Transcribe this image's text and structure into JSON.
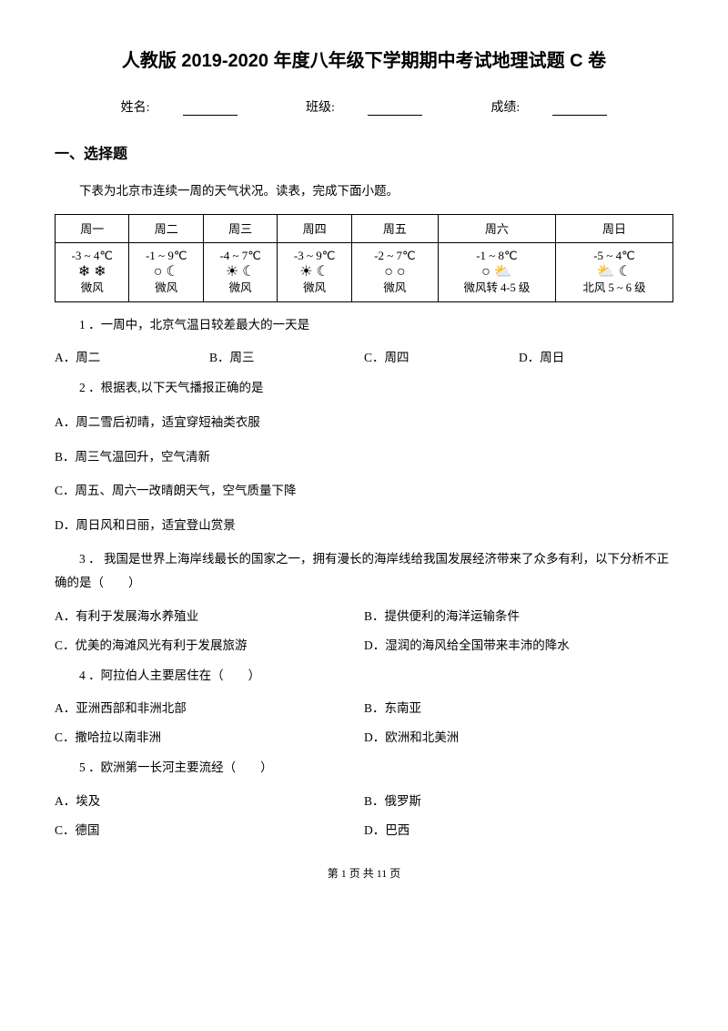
{
  "title": "人教版 2019-2020 年度八年级下学期期中考试地理试题 C 卷",
  "info": {
    "name_label": "姓名:",
    "class_label": "班级:",
    "score_label": "成绩:"
  },
  "section1": "一、选择题",
  "intro": "下表为北京市连续一周的天气状况。读表，完成下面小题。",
  "weather_table": {
    "headers": [
      "周一",
      "周二",
      "周三",
      "周四",
      "周五",
      "周六",
      "周日"
    ],
    "cells": [
      {
        "temp": "-3 ~ 4℃",
        "icons": "❄ ❄",
        "wind": "微风"
      },
      {
        "temp": "-1 ~ 9℃",
        "icons": "○ ☾",
        "wind": "微风"
      },
      {
        "temp": "-4 ~ 7℃",
        "icons": "☀ ☾",
        "wind": "微风"
      },
      {
        "temp": "-3 ~ 9℃",
        "icons": "☀ ☾",
        "wind": "微风"
      },
      {
        "temp": "-2 ~ 7℃",
        "icons": "○ ○",
        "wind": "微风"
      },
      {
        "temp": "-1 ~ 8℃",
        "icons": "○ ⛅",
        "wind": "微风转 4-5 级"
      },
      {
        "temp": "-5 ~ 4℃",
        "icons": "⛅ ☾",
        "wind": "北风 5 ~ 6 级"
      }
    ],
    "col_widths": [
      "12%",
      "12%",
      "12%",
      "12%",
      "14%",
      "19%",
      "19%"
    ]
  },
  "q1": {
    "stem": "1 ．一周中，北京气温日较差最大的一天是",
    "opts": [
      "A．周二",
      "B．周三",
      "C．周四",
      "D．周日"
    ]
  },
  "q2": {
    "stem": "2 ．根据表,以下天气播报正确的是",
    "opts": [
      "A．周二雪后初晴，适宜穿短袖类衣服",
      "B．周三气温回升，空气清新",
      "C．周五、周六一改晴朗天气，空气质量下降",
      "D．周日风和日丽，适宜登山赏景"
    ]
  },
  "q3": {
    "stem": "3 ． 我国是世界上海岸线最长的国家之一，拥有漫长的海岸线给我国发展经济带来了众多有利，以下分析不正确的是（　　）",
    "opts": [
      "A．有利于发展海水养殖业",
      "B．提供便利的海洋运输条件",
      "C．优美的海滩风光有利于发展旅游",
      "D．湿润的海风给全国带来丰沛的降水"
    ]
  },
  "q4": {
    "stem": "4 ．阿拉伯人主要居住在（　　）",
    "opts": [
      "A．亚洲西部和非洲北部",
      "B．东南亚",
      "C．撒哈拉以南非洲",
      "D．欧洲和北美洲"
    ]
  },
  "q5": {
    "stem": "5 ．欧洲第一长河主要流经（　　）",
    "opts": [
      "A．埃及",
      "B．俄罗斯",
      "C．德国",
      "D．巴西"
    ]
  },
  "footer": "第 1 页 共 11 页"
}
